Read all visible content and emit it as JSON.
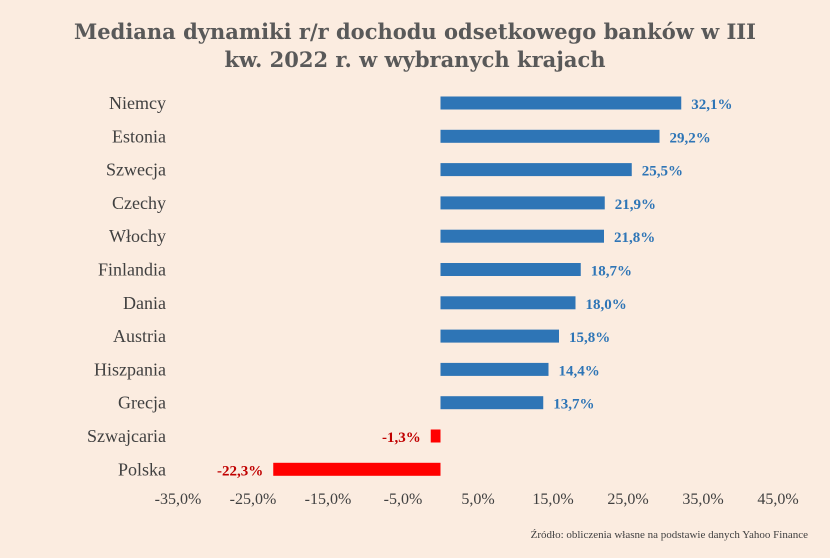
{
  "chart_data": {
    "type": "bar",
    "orientation": "horizontal",
    "title_lines": [
      "Mediana dynamiki r/r dochodu odsetkowego banków w III",
      "kw. 2022 r. w wybranych krajach"
    ],
    "categories": [
      "Niemcy",
      "Estonia",
      "Szwecja",
      "Czechy",
      "Włochy",
      "Finlandia",
      "Dania",
      "Austria",
      "Hiszpania",
      "Grecja",
      "Szwajcaria",
      "Polska"
    ],
    "values": [
      32.1,
      29.2,
      25.5,
      21.9,
      21.8,
      18.7,
      18.0,
      15.8,
      14.4,
      13.7,
      -1.3,
      -22.3
    ],
    "value_labels": [
      "32,1%",
      "29,2%",
      "25,5%",
      "21,9%",
      "21,8%",
      "18,7%",
      "18,0%",
      "15,8%",
      "14,4%",
      "13,7%",
      "-1,3%",
      "-22,3%"
    ],
    "xlim": [
      -35,
      45
    ],
    "x_ticks": [
      -35,
      -25,
      -15,
      -5,
      5,
      15,
      25,
      35,
      45
    ],
    "x_tick_labels": [
      "-35,0%",
      "-25,0%",
      "-15,0%",
      "-5,0%",
      "5,0%",
      "15,0%",
      "25,0%",
      "35,0%",
      "45,0%"
    ],
    "colors": {
      "positive": "#2e75b6",
      "negative": "#ff0000",
      "positive_label": "#2e75b6",
      "negative_label": "#c00000"
    },
    "grid": false,
    "legend": "none",
    "source": "Źródło: obliczenia własne na podstawie danych Yahoo Finance"
  }
}
